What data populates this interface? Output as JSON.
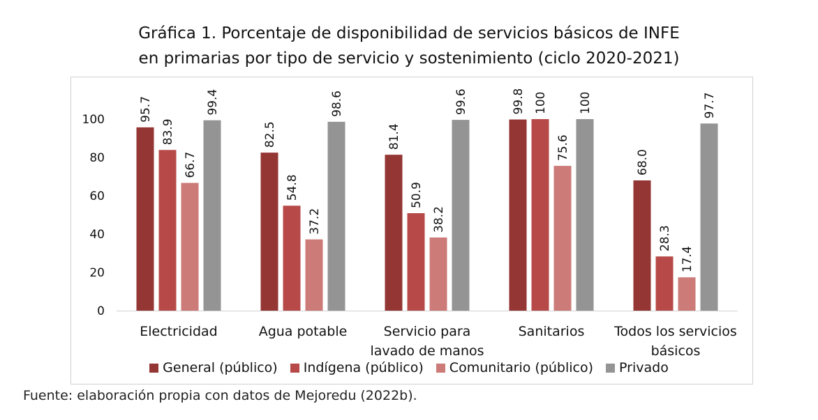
{
  "chart_data": {
    "type": "bar",
    "title_line1": "Gráfica 1. Porcentaje de disponibilidad de servicios básicos de INFE",
    "title_line2": "en primarias por tipo de servicio y sostenimiento (ciclo 2020-2021)",
    "categories": [
      [
        "Electricidad"
      ],
      [
        "Agua potable"
      ],
      [
        "Servicio para",
        "lavado de manos"
      ],
      [
        "Sanitarios"
      ],
      [
        "Todos los servicios",
        "básicos"
      ]
    ],
    "series": [
      {
        "name": "General (público)",
        "color": "#943634",
        "values": [
          95.7,
          82.5,
          81.4,
          99.8,
          68.0
        ],
        "labels": [
          "95.7",
          "82.5",
          "81.4",
          "99.8",
          "68.0"
        ]
      },
      {
        "name": "Indígena (público)",
        "color": "#b74a48",
        "values": [
          83.9,
          54.8,
          50.9,
          100,
          28.3
        ],
        "labels": [
          "83.9",
          "54.8",
          "50.9",
          "100",
          "28.3"
        ]
      },
      {
        "name": "Comunitario (público)",
        "color": "#cc7b79",
        "values": [
          66.7,
          37.2,
          38.2,
          75.6,
          17.4
        ],
        "labels": [
          "66.7",
          "37.2",
          "38.2",
          "75.6",
          "17.4"
        ]
      },
      {
        "name": "Privado",
        "color": "#949494",
        "values": [
          99.4,
          98.6,
          99.6,
          100,
          97.7
        ],
        "labels": [
          "99.4",
          "98.6",
          "99.6",
          "100",
          "97.7"
        ]
      }
    ],
    "ylim": [
      0,
      100
    ],
    "yticks": [
      "0",
      "20",
      "40",
      "60",
      "80",
      "100"
    ],
    "grid": false,
    "legend_position": "bottom"
  },
  "source_text": "Fuente: elaboración propia con datos de Mejoredu (2022b)."
}
